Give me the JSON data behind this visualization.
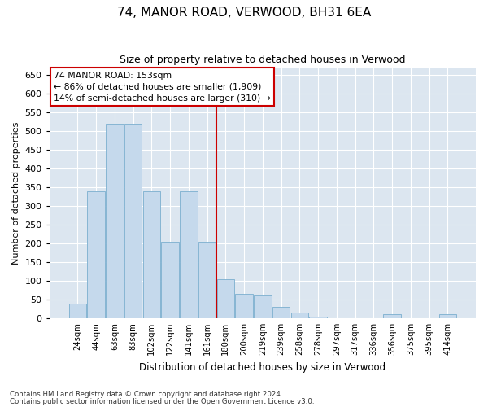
{
  "title1": "74, MANOR ROAD, VERWOOD, BH31 6EA",
  "title2": "Size of property relative to detached houses in Verwood",
  "xlabel": "Distribution of detached houses by size in Verwood",
  "ylabel": "Number of detached properties",
  "footnote1": "Contains HM Land Registry data © Crown copyright and database right 2024.",
  "footnote2": "Contains public sector information licensed under the Open Government Licence v3.0.",
  "annotation_line1": "74 MANOR ROAD: 153sqm",
  "annotation_line2": "← 86% of detached houses are smaller (1,909)",
  "annotation_line3": "14% of semi-detached houses are larger (310) →",
  "bar_color": "#c5d9ec",
  "bar_edgecolor": "#7aaecf",
  "vline_color": "#cc0000",
  "annotation_box_edgecolor": "#cc0000",
  "background_color": "#dce6f0",
  "categories": [
    "24sqm",
    "44sqm",
    "63sqm",
    "83sqm",
    "102sqm",
    "122sqm",
    "141sqm",
    "161sqm",
    "180sqm",
    "200sqm",
    "219sqm",
    "239sqm",
    "258sqm",
    "278sqm",
    "297sqm",
    "317sqm",
    "336sqm",
    "356sqm",
    "375sqm",
    "395sqm",
    "414sqm"
  ],
  "values": [
    40,
    340,
    520,
    520,
    340,
    205,
    340,
    205,
    105,
    65,
    60,
    30,
    15,
    5,
    0,
    0,
    0,
    10,
    0,
    0,
    10
  ],
  "vline_x": 7.5,
  "ylim": [
    0,
    670
  ],
  "yticks": [
    0,
    50,
    100,
    150,
    200,
    250,
    300,
    350,
    400,
    450,
    500,
    550,
    600,
    650
  ]
}
